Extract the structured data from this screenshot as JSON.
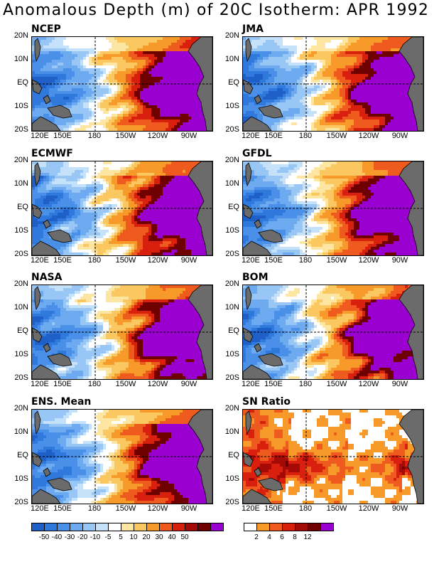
{
  "title": "Anomalous Depth (m) of 20C Isotherm: APR 1992",
  "lat_labels": [
    "20N",
    "10N",
    "EQ",
    "10S",
    "20S"
  ],
  "lon_labels": [
    "120E",
    "150E",
    "180",
    "150W",
    "120W",
    "90W"
  ],
  "panels": [
    {
      "label": "NCEP",
      "kind": "anom",
      "variant": 0
    },
    {
      "label": "JMA",
      "kind": "anom",
      "variant": 1
    },
    {
      "label": "ECMWF",
      "kind": "anom",
      "variant": 2
    },
    {
      "label": "GFDL",
      "kind": "anom",
      "variant": 3
    },
    {
      "label": "NASA",
      "kind": "anom",
      "variant": 4
    },
    {
      "label": "BOM",
      "kind": "anom",
      "variant": 5
    },
    {
      "label": "ENS. Mean",
      "kind": "anom",
      "variant": 6
    },
    {
      "label": "SN Ratio",
      "kind": "sn",
      "variant": 7
    }
  ],
  "anomaly_colorbar": {
    "colors": [
      "#1f5fc8",
      "#2f79dc",
      "#4a90e8",
      "#6eaaf0",
      "#98c6f5",
      "#c6e2fa",
      "#ffffff",
      "#fde6a2",
      "#fbc760",
      "#f79a2a",
      "#ef5a1e",
      "#d9200f",
      "#a40a06",
      "#6e0000",
      "#9a00d0"
    ],
    "labels": [
      "-50",
      "-40",
      "-30",
      "-20",
      "-10",
      "-5",
      "5",
      "10",
      "20",
      "30",
      "40",
      "50"
    ]
  },
  "sn_colorbar": {
    "colors": [
      "#ffffff",
      "#f79a2a",
      "#ef5a1e",
      "#d9200f",
      "#a40a06",
      "#6e0000",
      "#9a00d0"
    ],
    "labels": [
      "2",
      "4",
      "6",
      "8",
      "12"
    ]
  }
}
